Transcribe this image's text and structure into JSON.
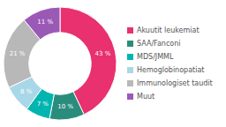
{
  "chart_data": {
    "type": "donut",
    "categories": [
      "Akuutit leukemiat",
      "SAA/Fanconi",
      "MDS/JMML",
      "Hemoglobinopatiat",
      "Immunologiset taudit",
      "Muut"
    ],
    "values": [
      43,
      10,
      7,
      8,
      21,
      11
    ],
    "value_labels": [
      "43 %",
      "10 %",
      "7 %",
      "8 %",
      "21 %",
      "11 %"
    ],
    "colors": [
      "#e8316e",
      "#2a8c7c",
      "#00b5b0",
      "#a8d8e8",
      "#b8b8b8",
      "#9b59b6"
    ],
    "data_labels": true,
    "legend": "right"
  }
}
